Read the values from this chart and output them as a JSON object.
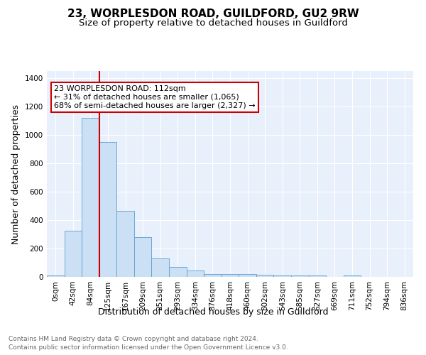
{
  "title": "23, WORPLESDON ROAD, GUILDFORD, GU2 9RW",
  "subtitle": "Size of property relative to detached houses in Guildford",
  "xlabel": "Distribution of detached houses by size in Guildford",
  "ylabel": "Number of detached properties",
  "footnote1": "Contains HM Land Registry data © Crown copyright and database right 2024.",
  "footnote2": "Contains public sector information licensed under the Open Government Licence v3.0.",
  "bar_labels": [
    "0sqm",
    "42sqm",
    "84sqm",
    "125sqm",
    "167sqm",
    "209sqm",
    "251sqm",
    "293sqm",
    "334sqm",
    "376sqm",
    "418sqm",
    "460sqm",
    "502sqm",
    "543sqm",
    "585sqm",
    "627sqm",
    "669sqm",
    "711sqm",
    "752sqm",
    "794sqm",
    "836sqm"
  ],
  "bar_heights": [
    10,
    325,
    1120,
    950,
    465,
    280,
    130,
    68,
    45,
    20,
    22,
    20,
    15,
    8,
    8,
    8,
    0,
    12,
    0,
    0,
    0
  ],
  "bar_color": "#cce0f5",
  "bar_edge_color": "#5a9fd4",
  "vline_x_idx": 2.5,
  "vline_color": "#cc0000",
  "annotation_text": "23 WORPLESDON ROAD: 112sqm\n← 31% of detached houses are smaller (1,065)\n68% of semi-detached houses are larger (2,327) →",
  "annotation_box_color": "#ffffff",
  "annotation_box_edge": "#cc0000",
  "ylim": [
    0,
    1450
  ],
  "yticks": [
    0,
    200,
    400,
    600,
    800,
    1000,
    1200,
    1400
  ],
  "plot_bg_color": "#e8f0fb",
  "title_fontsize": 11,
  "subtitle_fontsize": 9.5,
  "axis_label_fontsize": 9,
  "tick_fontsize": 7.5,
  "annotation_fontsize": 8,
  "footnote_fontsize": 6.5
}
